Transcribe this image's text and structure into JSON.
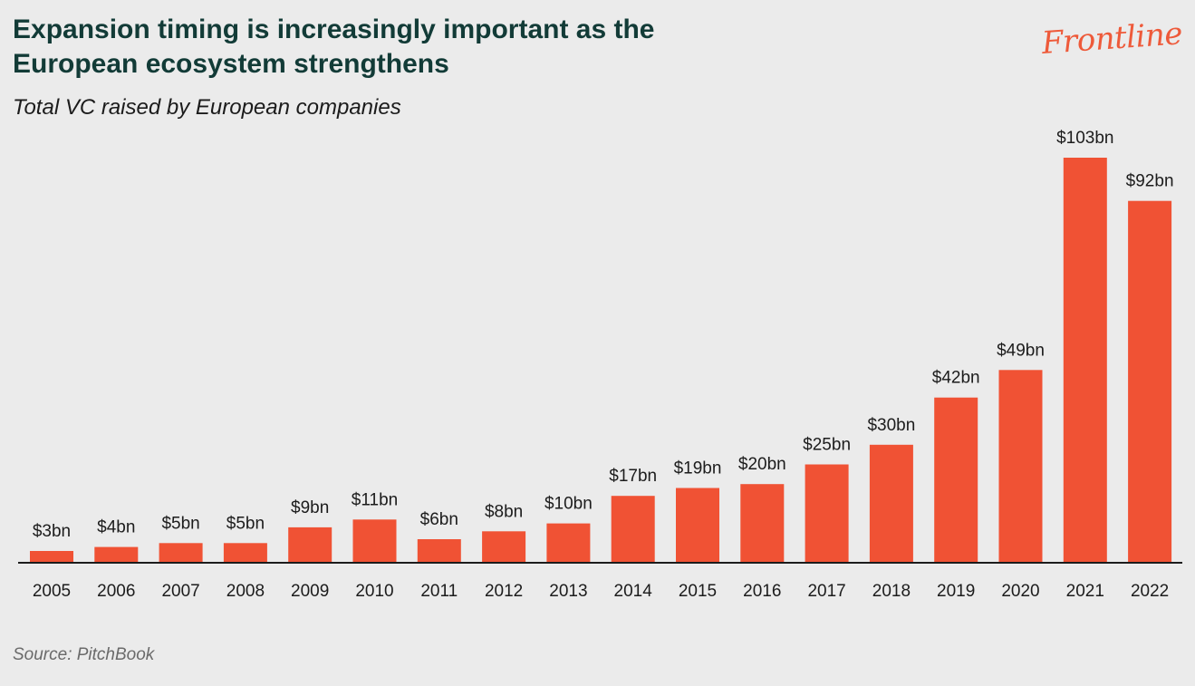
{
  "header": {
    "title": "Expansion timing is increasingly important as the European ecosystem strengthens",
    "subtitle": "Total VC raised by European companies",
    "brand": "Frontline"
  },
  "footer": {
    "source": "Source: PitchBook"
  },
  "colors": {
    "bar": "#f05234",
    "title": "#123b37",
    "background": "#ebebeb"
  },
  "chart_data": {
    "type": "bar",
    "title": "Expansion timing is increasingly important as the European ecosystem strengthens",
    "subtitle": "Total VC raised by European companies",
    "xlabel": "",
    "ylabel": "",
    "categories": [
      "2005",
      "2006",
      "2007",
      "2008",
      "2009",
      "2010",
      "2011",
      "2012",
      "2013",
      "2014",
      "2015",
      "2016",
      "2017",
      "2018",
      "2019",
      "2020",
      "2021",
      "2022"
    ],
    "values": [
      3,
      4,
      5,
      5,
      9,
      11,
      6,
      8,
      10,
      17,
      19,
      20,
      25,
      30,
      42,
      49,
      103,
      92
    ],
    "data_labels": [
      "$3bn",
      "$4bn",
      "$5bn",
      "$5bn",
      "$9bn",
      "$11bn",
      "$6bn",
      "$8bn",
      "$10bn",
      "$17bn",
      "$19bn",
      "$20bn",
      "$25bn",
      "$30bn",
      "$42bn",
      "$49bn",
      "$103bn",
      "$92bn"
    ],
    "unit": "$bn",
    "ylim": [
      0,
      103
    ],
    "grid": false,
    "legend": "none"
  }
}
